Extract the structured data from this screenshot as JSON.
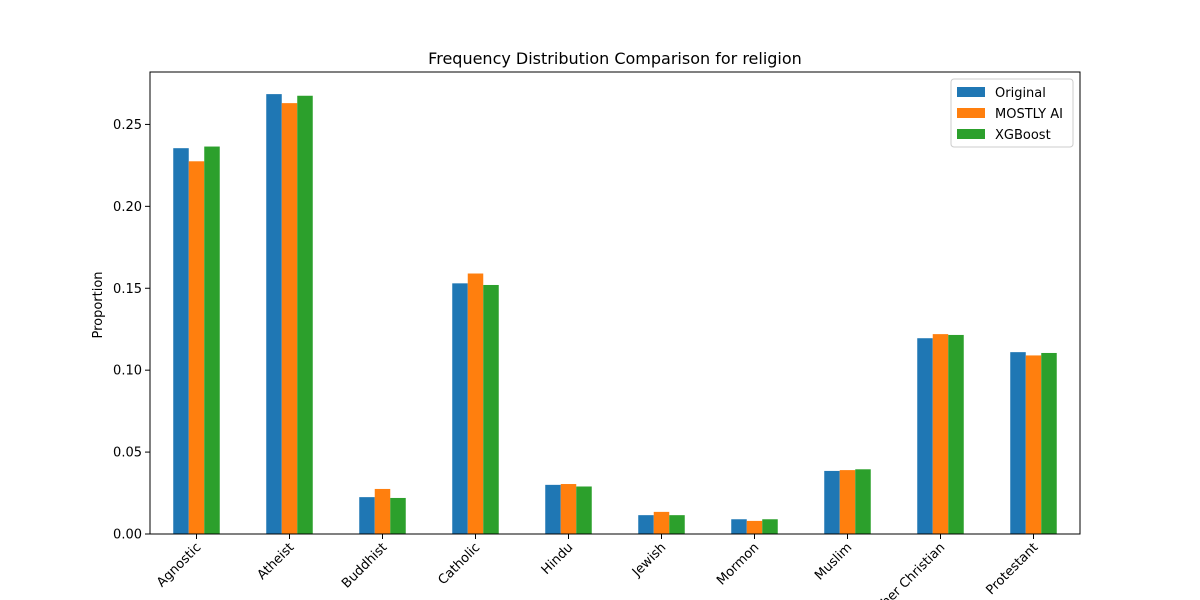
{
  "chart_data": {
    "type": "bar",
    "title": "Frequency Distribution Comparison for religion",
    "xlabel": "",
    "ylabel": "Proportion",
    "categories": [
      "Agnostic",
      "Atheist",
      "Buddhist",
      "Catholic",
      "Hindu",
      "Jewish",
      "Mormon",
      "Muslim",
      "Other Christian",
      "Protestant"
    ],
    "series": [
      {
        "name": "Original",
        "color": "#1f77b4",
        "values": [
          0.2355,
          0.2685,
          0.0225,
          0.153,
          0.03,
          0.0115,
          0.009,
          0.0385,
          0.1195,
          0.111
        ]
      },
      {
        "name": "MOSTLY AI",
        "color": "#ff7f0e",
        "values": [
          0.2275,
          0.263,
          0.0275,
          0.159,
          0.0305,
          0.0135,
          0.008,
          0.039,
          0.122,
          0.109
        ]
      },
      {
        "name": "XGBoost",
        "color": "#2ca02c",
        "values": [
          0.2365,
          0.2675,
          0.022,
          0.152,
          0.029,
          0.0115,
          0.009,
          0.0395,
          0.1215,
          0.1105
        ]
      }
    ],
    "ylim": [
      0,
      0.282
    ],
    "yticks": [
      "0.00",
      "0.05",
      "0.10",
      "0.15",
      "0.20",
      "0.25"
    ],
    "grid": false,
    "legend_position": "top-right"
  }
}
